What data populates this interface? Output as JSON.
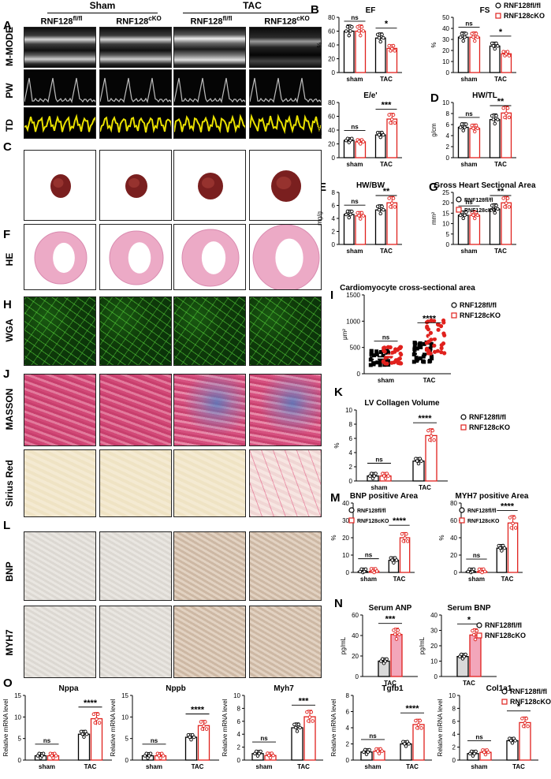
{
  "groups": {
    "sham": "Sham",
    "tac": "TAC",
    "fl_base": "RNF128",
    "fl_sup": "fl/fl",
    "cko_base": "RNF128",
    "cko_sup": "cKO"
  },
  "panels": {
    "A": "A",
    "B": "B",
    "C": "C",
    "D": "D",
    "E": "E",
    "F": "F",
    "G": "G",
    "H": "H",
    "I": "I",
    "J": "J",
    "K": "K",
    "L": "L",
    "M": "M",
    "N": "N",
    "O": "O"
  },
  "row_labels": {
    "mmode": "M-MODE",
    "pw": "PW",
    "td": "TD",
    "he": "HE",
    "wga": "WGA",
    "masson": "MASSON",
    "sirius": "Sirius Red",
    "bnp": "BNP",
    "myh7": "MYH7"
  },
  "legend": {
    "fl": "RNF128fl/fl",
    "cko": "RNF128cKO"
  },
  "colors": {
    "fl": "#000000",
    "cko": "#e0211d",
    "cko_fill": "#f3a6ba",
    "td_yellow": "#e8e000"
  },
  "chart_data": [
    {
      "id": "EF",
      "type": "bar",
      "title": "EF",
      "ylabel": "%",
      "categories": [
        "sham",
        "TAC"
      ],
      "ylim": [
        0,
        80
      ],
      "yticks": [
        0,
        20,
        40,
        60,
        80
      ],
      "series": [
        {
          "name": "RNF128fl/fl",
          "values": [
            60,
            50
          ]
        },
        {
          "name": "RNF128cKO",
          "values": [
            60,
            35
          ]
        }
      ],
      "annotations": [
        "ns",
        "*"
      ]
    },
    {
      "id": "FS",
      "type": "bar",
      "title": "FS",
      "ylabel": "%",
      "categories": [
        "sham",
        "TAC"
      ],
      "ylim": [
        0,
        50
      ],
      "yticks": [
        0,
        10,
        20,
        30,
        40,
        50
      ],
      "series": [
        {
          "name": "RNF128fl/fl",
          "values": [
            32,
            24
          ]
        },
        {
          "name": "RNF128cKO",
          "values": [
            32,
            17
          ]
        }
      ],
      "annotations": [
        "ns",
        "*"
      ]
    },
    {
      "id": "Ee",
      "type": "bar",
      "title": "E/e'",
      "ylabel": "E/e'",
      "categories": [
        "sham",
        "TAC"
      ],
      "ylim": [
        0,
        80
      ],
      "yticks": [
        0,
        20,
        40,
        60,
        80
      ],
      "series": [
        {
          "name": "RNF128fl/fl",
          "values": [
            25,
            33
          ]
        },
        {
          "name": "RNF128cKO",
          "values": [
            23,
            56
          ]
        }
      ],
      "annotations": [
        "ns",
        "***"
      ]
    },
    {
      "id": "HWTL",
      "type": "bar",
      "title": "HW/TL",
      "ylabel": "g/cm",
      "categories": [
        "sham",
        "TAC"
      ],
      "ylim": [
        0,
        10
      ],
      "yticks": [
        0,
        2,
        4,
        6,
        8,
        10
      ],
      "series": [
        {
          "name": "RNF128fl/fl",
          "values": [
            5.5,
            6.9
          ]
        },
        {
          "name": "RNF128cKO",
          "values": [
            5.3,
            8.1
          ]
        }
      ],
      "annotations": [
        "ns",
        "**"
      ]
    },
    {
      "id": "HWBW",
      "type": "bar",
      "title": "HW/BW",
      "ylabel": "mg/g",
      "categories": [
        "sham",
        "TAC"
      ],
      "ylim": [
        0,
        8
      ],
      "yticks": [
        0,
        2,
        4,
        6,
        8
      ],
      "series": [
        {
          "name": "RNF128fl/fl",
          "values": [
            4.6,
            5.3
          ]
        },
        {
          "name": "RNF128cKO",
          "values": [
            4.4,
            6.4
          ]
        }
      ],
      "annotations": [
        "ns",
        "**"
      ]
    },
    {
      "id": "GHSA",
      "type": "bar",
      "title": "Gross Heart Sectional Area",
      "ylabel": "mm²",
      "categories": [
        "sham",
        "TAC"
      ],
      "ylim": [
        0,
        25
      ],
      "yticks": [
        0,
        5,
        10,
        15,
        20,
        25
      ],
      "series": [
        {
          "name": "RNF128fl/fl",
          "values": [
            14,
            17
          ]
        },
        {
          "name": "RNF128cKO",
          "values": [
            14,
            20
          ]
        }
      ],
      "annotations": [
        "ns",
        "**"
      ]
    },
    {
      "id": "CSA",
      "type": "scatter",
      "title": "Cardiomyocyte cross-sectional area",
      "ylabel": "μm²",
      "categories": [
        "sham",
        "TAC"
      ],
      "ylim": [
        0,
        1500
      ],
      "yticks": [
        0,
        500,
        1000,
        1500
      ],
      "series": [
        {
          "name": "RNF128fl/fl",
          "values": [
            300,
            410
          ]
        },
        {
          "name": "RNF128cKO",
          "values": [
            350,
            700
          ]
        }
      ],
      "annotations": [
        "ns",
        "****"
      ]
    },
    {
      "id": "LVCV",
      "type": "bar",
      "title": "LV Collagen Volume",
      "ylabel": "%",
      "categories": [
        "sham",
        "TAC"
      ],
      "ylim": [
        0,
        10
      ],
      "yticks": [
        0,
        2,
        4,
        6,
        8,
        10
      ],
      "series": [
        {
          "name": "RNF128fl/fl",
          "values": [
            0.7,
            2.8
          ]
        },
        {
          "name": "RNF128cKO",
          "values": [
            0.7,
            6.4
          ]
        }
      ],
      "annotations": [
        "ns",
        "****"
      ]
    },
    {
      "id": "BNPA",
      "type": "bar",
      "title": "BNP positive Area",
      "ylabel": "%",
      "categories": [
        "sham",
        "TAC"
      ],
      "ylim": [
        0,
        40
      ],
      "yticks": [
        0,
        10,
        20,
        30,
        40
      ],
      "series": [
        {
          "name": "RNF128fl/fl",
          "values": [
            0.5,
            7
          ]
        },
        {
          "name": "RNF128cKO",
          "values": [
            0.7,
            20
          ]
        }
      ],
      "annotations": [
        "ns",
        "****"
      ]
    },
    {
      "id": "MYH7A",
      "type": "bar",
      "title": "MYH7 positive Area",
      "ylabel": "%",
      "categories": [
        "sham",
        "TAC"
      ],
      "ylim": [
        0,
        80
      ],
      "yticks": [
        0,
        20,
        40,
        60,
        80
      ],
      "series": [
        {
          "name": "RNF128fl/fl",
          "values": [
            1,
            28
          ]
        },
        {
          "name": "RNF128cKO",
          "values": [
            1,
            57
          ]
        }
      ],
      "annotations": [
        "ns",
        "****"
      ]
    },
    {
      "id": "SANP",
      "type": "bar",
      "title": "Serum ANP",
      "ylabel": "pg/mL",
      "categories": [
        "TAC"
      ],
      "ylim": [
        0,
        60
      ],
      "yticks": [
        0,
        20,
        40,
        60
      ],
      "series": [
        {
          "name": "RNF128fl/fl",
          "values": [
            15
          ]
        },
        {
          "name": "RNF128cKO",
          "values": [
            41
          ]
        }
      ],
      "annotations": [
        "***"
      ]
    },
    {
      "id": "SBNP",
      "type": "bar",
      "title": "Serum BNP",
      "ylabel": "pg/mL",
      "categories": [
        "TAC"
      ],
      "ylim": [
        0,
        40
      ],
      "yticks": [
        0,
        10,
        20,
        30,
        40
      ],
      "series": [
        {
          "name": "RNF128fl/fl",
          "values": [
            13
          ]
        },
        {
          "name": "RNF128cKO",
          "values": [
            27
          ]
        }
      ],
      "annotations": [
        "*"
      ]
    },
    {
      "id": "Nppa",
      "type": "bar",
      "title": "Nppa",
      "ylabel": "Relative mRNA level",
      "categories": [
        "sham",
        "TAC"
      ],
      "ylim": [
        0,
        15
      ],
      "yticks": [
        0,
        5,
        10,
        15
      ],
      "series": [
        {
          "name": "RNF128fl/fl",
          "values": [
            1,
            6
          ]
        },
        {
          "name": "RNF128cKO",
          "values": [
            1,
            9.6
          ]
        }
      ],
      "annotations": [
        "ns",
        "****"
      ]
    },
    {
      "id": "Nppb",
      "type": "bar",
      "title": "Nppb",
      "ylabel": "Relative mRNA level",
      "categories": [
        "sham",
        "TAC"
      ],
      "ylim": [
        0,
        15
      ],
      "yticks": [
        0,
        5,
        10,
        15
      ],
      "series": [
        {
          "name": "RNF128fl/fl",
          "values": [
            1,
            5.3
          ]
        },
        {
          "name": "RNF128cKO",
          "values": [
            1,
            8
          ]
        }
      ],
      "annotations": [
        "ns",
        "****"
      ]
    },
    {
      "id": "Myh7",
      "type": "bar",
      "title": "Myh7",
      "ylabel": "Relative mRNA level",
      "categories": [
        "sham",
        "TAC"
      ],
      "ylim": [
        0,
        10
      ],
      "yticks": [
        0,
        2,
        4,
        6,
        8,
        10
      ],
      "series": [
        {
          "name": "RNF128fl/fl",
          "values": [
            1,
            5
          ]
        },
        {
          "name": "RNF128cKO",
          "values": [
            0.7,
            6.7
          ]
        }
      ],
      "annotations": [
        "ns",
        "***"
      ]
    },
    {
      "id": "Tgfb1",
      "type": "bar",
      "title": "Tgfb1",
      "ylabel": "Relative mRNA level",
      "categories": [
        "sham",
        "TAC"
      ],
      "ylim": [
        0,
        8
      ],
      "yticks": [
        0,
        2,
        4,
        6,
        8
      ],
      "series": [
        {
          "name": "RNF128fl/fl",
          "values": [
            1,
            2
          ]
        },
        {
          "name": "RNF128cKO",
          "values": [
            1.1,
            4.4
          ]
        }
      ],
      "annotations": [
        "ns",
        "****"
      ]
    },
    {
      "id": "Col1a1",
      "type": "bar",
      "title": "Col1a1",
      "ylabel": "Relative mRNA level",
      "categories": [
        "sham",
        "TAC"
      ],
      "ylim": [
        0,
        10
      ],
      "yticks": [
        0,
        2,
        4,
        6,
        8,
        10
      ],
      "series": [
        {
          "name": "RNF128fl/fl",
          "values": [
            1,
            3
          ]
        },
        {
          "name": "RNF128cKO",
          "values": [
            1.2,
            5.8
          ]
        }
      ],
      "annotations": [
        "ns",
        "*"
      ]
    }
  ]
}
